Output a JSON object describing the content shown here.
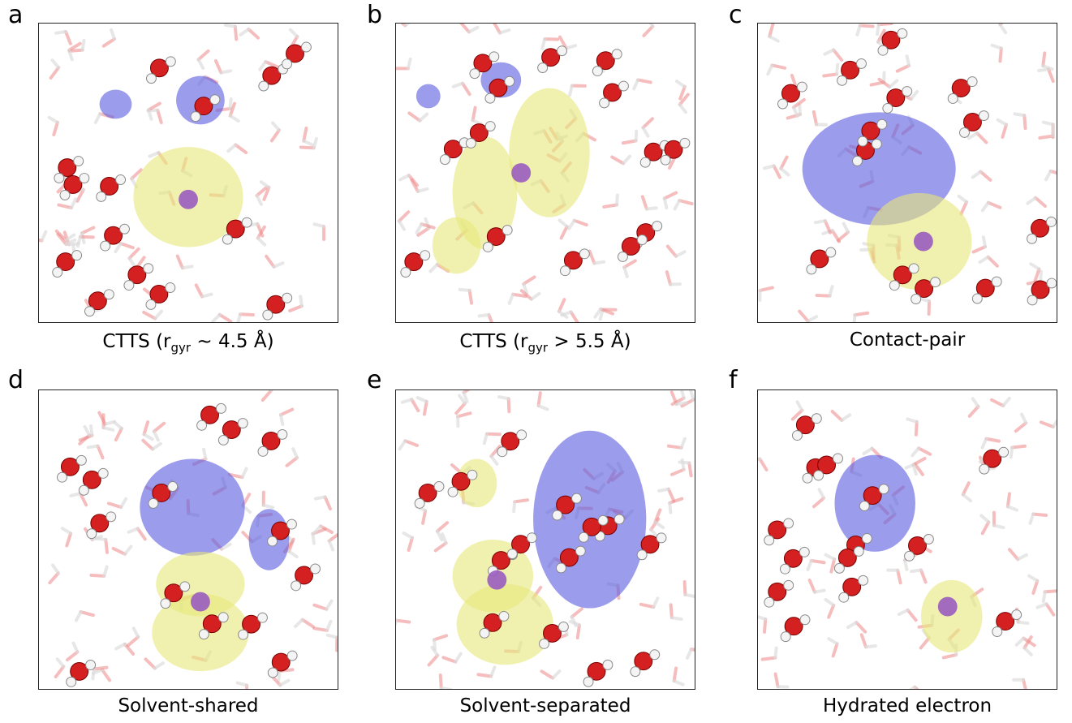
{
  "panels": [
    {
      "letter": "a",
      "caption_pre": "CTTS (r",
      "caption_sub": "gyr",
      "caption_post": " ~ 4.5 Å)"
    },
    {
      "letter": "b",
      "caption_pre": "CTTS (r",
      "caption_sub": "gyr",
      "caption_post": " > 5.5 Å)"
    },
    {
      "letter": "c",
      "caption": "Contact-pair"
    },
    {
      "letter": "d",
      "caption": "Solvent-shared"
    },
    {
      "letter": "e",
      "caption": "Solvent-separated"
    },
    {
      "letter": "f",
      "caption": "Hydrated electron"
    }
  ],
  "colors": {
    "oxygen": "#d42020",
    "hydrogen": "#f4f4f4",
    "sodium": "#9a5cc0",
    "homo_lobe": "#e8e87a",
    "lumo_lobe": "#5a5ae0"
  }
}
